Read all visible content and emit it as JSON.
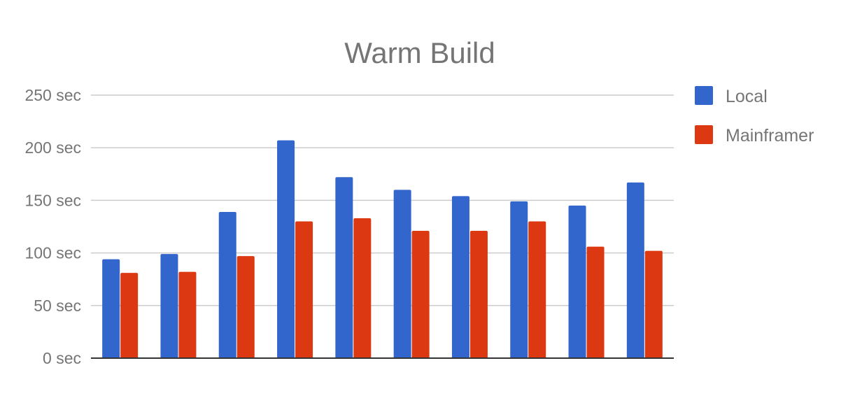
{
  "chart_data": {
    "type": "bar",
    "title": "Warm Build",
    "xlabel": "",
    "ylabel": "",
    "ylim": [
      0,
      250
    ],
    "yticks": [
      0,
      50,
      100,
      150,
      200,
      250
    ],
    "ytick_labels": [
      "0 sec",
      "50 sec",
      "100 sec",
      "150 sec",
      "200 sec",
      "250 sec"
    ],
    "grid": true,
    "legend_position": "right",
    "categories": [
      "",
      "",
      "",
      "",
      "",
      "",
      "",
      "",
      "",
      ""
    ],
    "series": [
      {
        "name": "Local",
        "color": "#3366cc",
        "values": [
          94,
          99,
          139,
          207,
          172,
          160,
          154,
          149,
          145,
          167
        ]
      },
      {
        "name": "Mainframer",
        "color": "#dc3912",
        "values": [
          81,
          82,
          97,
          130,
          133,
          121,
          121,
          130,
          106,
          102
        ]
      }
    ]
  }
}
